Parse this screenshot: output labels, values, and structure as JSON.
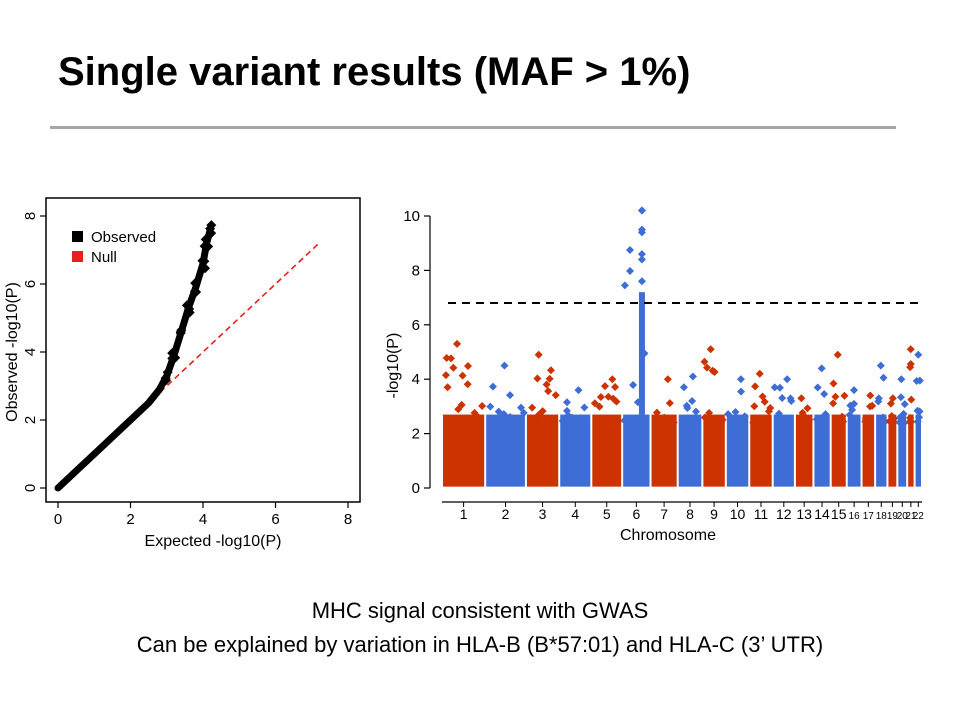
{
  "slide": {
    "title": "Single variant results (MAF > 1%)",
    "caption_line1": "MHC signal consistent with GWAS",
    "caption_line2": "Can be explained by variation in HLA-B (B*57:01) and HLA-C (3’ UTR)"
  },
  "colors": {
    "observed": "#000000",
    "null": "#e8201c",
    "chr_odd": "#cc3300",
    "chr_even": "#3f6dd6",
    "threshold": "#000000"
  },
  "chart_data": [
    {
      "type": "scatter",
      "name": "qq-plot",
      "xlabel": "Expected -log10(P)",
      "ylabel": "Observed -log10(P)",
      "xlim": [
        0,
        8
      ],
      "ylim": [
        0,
        8
      ],
      "xticks": [
        "0",
        "2",
        "4",
        "6",
        "8"
      ],
      "yticks": [
        "0",
        "2",
        "4",
        "6",
        "8"
      ],
      "legend": {
        "placement": "top-left",
        "entries": [
          "Observed",
          "Null"
        ]
      },
      "series": [
        {
          "name": "Observed",
          "x": [
            0,
            0.5,
            1,
            1.5,
            2,
            2.5,
            2.8,
            3.0,
            3.2,
            3.4,
            3.6,
            3.8,
            4.0,
            4.1,
            4.2
          ],
          "y": [
            0,
            0.5,
            1,
            1.5,
            2,
            2.5,
            2.9,
            3.3,
            3.9,
            4.6,
            5.3,
            5.9,
            6.6,
            7.2,
            7.6
          ]
        },
        {
          "name": "Null",
          "x": [
            0,
            7.2
          ],
          "y": [
            0,
            7.2
          ]
        }
      ]
    },
    {
      "type": "scatter",
      "name": "manhattan-plot",
      "xlabel": "Chromosome",
      "ylabel": "-log10(P)",
      "ylim": [
        0,
        10
      ],
      "yticks": [
        "0",
        "2",
        "4",
        "6",
        "8",
        "10"
      ],
      "threshold": 6.8,
      "chromosomes": [
        "1",
        "2",
        "3",
        "4",
        "5",
        "6",
        "7",
        "8",
        "9",
        "10",
        "11",
        "12",
        "13",
        "14",
        "15",
        "16",
        "17",
        "18",
        "19",
        "20",
        "21",
        "22"
      ],
      "tick_labels": [
        "1",
        "2",
        "3",
        "4",
        "5",
        "6",
        "7",
        "8",
        "9",
        "10",
        "11",
        "12",
        "13",
        "14",
        "15",
        "16",
        "17",
        "18",
        "19",
        "20",
        "21",
        "22"
      ],
      "peak_values": [
        5.3,
        4.5,
        4.9,
        3.6,
        4.0,
        10.2,
        4.0,
        4.1,
        5.1,
        4.0,
        4.2,
        4.0,
        3.3,
        4.4,
        4.9,
        3.6,
        3.4,
        4.5,
        3.3,
        4.0,
        5.1,
        4.9
      ]
    }
  ]
}
